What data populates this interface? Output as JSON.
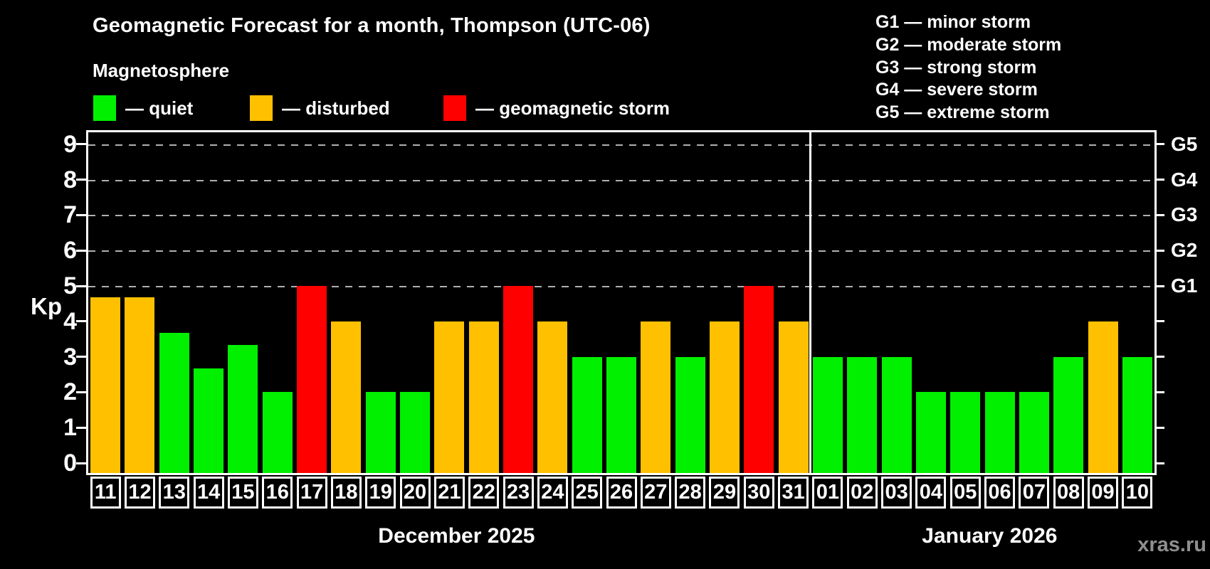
{
  "title": "Geomagnetic Forecast for a month, Thompson (UTC-06)",
  "subtitle": "Magnetosphere",
  "watermark": "xras.ru",
  "colors": {
    "background": "#000000",
    "axis": "#ffffff",
    "grid": "#b0b0b0",
    "quiet": "#00f000",
    "disturbed": "#ffc000",
    "storm": "#ff0000",
    "watermark": "#8f8f8f"
  },
  "legend": {
    "items": [
      {
        "key": "quiet",
        "label": "— quiet"
      },
      {
        "key": "disturbed",
        "label": "— disturbed"
      },
      {
        "key": "storm",
        "label": "— geomagnetic storm"
      }
    ]
  },
  "g_legend": {
    "lines": [
      "G1 — minor storm",
      "G2 — moderate storm",
      "G3 — strong storm",
      "G4 — severe storm",
      "G5 — extreme storm"
    ]
  },
  "chart_data": {
    "type": "bar",
    "title": "Geomagnetic Forecast for a month, Thompson (UTC-06)",
    "subtitle": "Magnetosphere",
    "ylabel": "Kp",
    "ylim": [
      0,
      9.4
    ],
    "yticks": [
      "0",
      "1",
      "2",
      "3",
      "4",
      "5",
      "6",
      "7",
      "8",
      "9"
    ],
    "gridlines_at_kp": [
      5,
      6,
      7,
      8,
      9
    ],
    "grid": "horizontal dashed",
    "legend_position": "top-left",
    "right_axis": [
      {
        "label": "G1",
        "kp": 5
      },
      {
        "label": "G2",
        "kp": 6
      },
      {
        "label": "G3",
        "kp": 7
      },
      {
        "label": "G4",
        "kp": 8
      },
      {
        "label": "G5",
        "kp": 9
      }
    ],
    "months": [
      {
        "label": "December 2025",
        "days": [
          {
            "day": "11",
            "kp": 4.67,
            "status": "disturbed"
          },
          {
            "day": "12",
            "kp": 4.67,
            "status": "disturbed"
          },
          {
            "day": "13",
            "kp": 3.67,
            "status": "quiet"
          },
          {
            "day": "14",
            "kp": 2.67,
            "status": "quiet"
          },
          {
            "day": "15",
            "kp": 3.33,
            "status": "quiet"
          },
          {
            "day": "16",
            "kp": 2,
            "status": "quiet"
          },
          {
            "day": "17",
            "kp": 5,
            "status": "storm"
          },
          {
            "day": "18",
            "kp": 4,
            "status": "disturbed"
          },
          {
            "day": "19",
            "kp": 2,
            "status": "quiet"
          },
          {
            "day": "20",
            "kp": 2,
            "status": "quiet"
          },
          {
            "day": "21",
            "kp": 4,
            "status": "disturbed"
          },
          {
            "day": "22",
            "kp": 4,
            "status": "disturbed"
          },
          {
            "day": "23",
            "kp": 5,
            "status": "storm"
          },
          {
            "day": "24",
            "kp": 4,
            "status": "disturbed"
          },
          {
            "day": "25",
            "kp": 3,
            "status": "quiet"
          },
          {
            "day": "26",
            "kp": 3,
            "status": "quiet"
          },
          {
            "day": "27",
            "kp": 4,
            "status": "disturbed"
          },
          {
            "day": "28",
            "kp": 3,
            "status": "quiet"
          },
          {
            "day": "29",
            "kp": 4,
            "status": "disturbed"
          },
          {
            "day": "30",
            "kp": 5,
            "status": "storm"
          },
          {
            "day": "31",
            "kp": 4,
            "status": "disturbed"
          }
        ]
      },
      {
        "label": "January 2026",
        "days": [
          {
            "day": "01",
            "kp": 3,
            "status": "quiet"
          },
          {
            "day": "02",
            "kp": 3,
            "status": "quiet"
          },
          {
            "day": "03",
            "kp": 3,
            "status": "quiet"
          },
          {
            "day": "04",
            "kp": 2,
            "status": "quiet"
          },
          {
            "day": "05",
            "kp": 2,
            "status": "quiet"
          },
          {
            "day": "06",
            "kp": 2,
            "status": "quiet"
          },
          {
            "day": "07",
            "kp": 2,
            "status": "quiet"
          },
          {
            "day": "08",
            "kp": 3,
            "status": "quiet"
          },
          {
            "day": "09",
            "kp": 4,
            "status": "disturbed"
          },
          {
            "day": "10",
            "kp": 3,
            "status": "quiet"
          }
        ]
      }
    ]
  }
}
